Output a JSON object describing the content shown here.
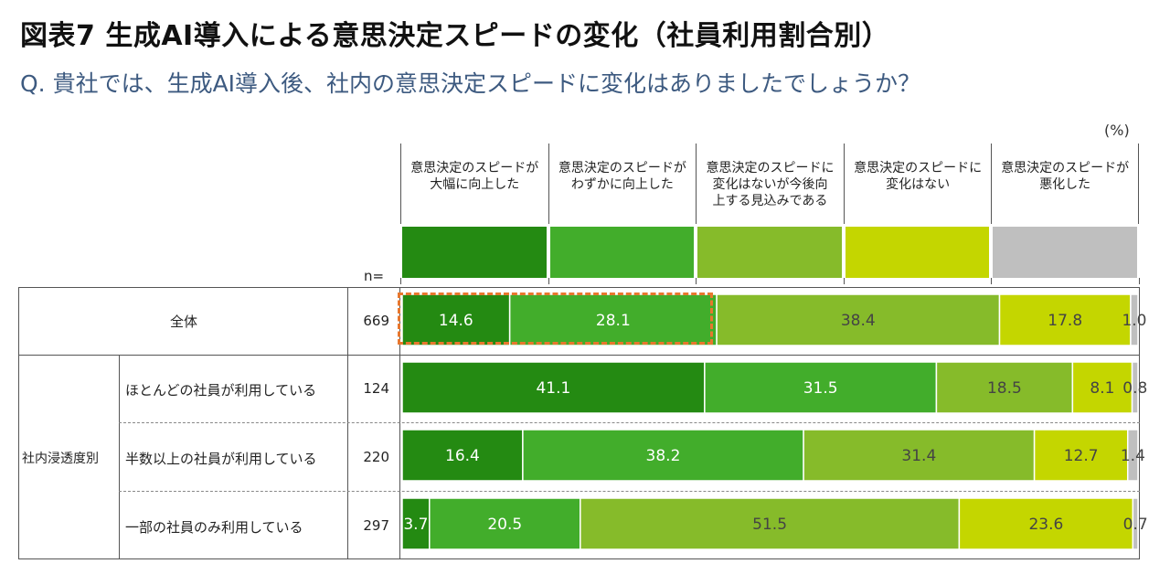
{
  "header": {
    "title": "図表7 生成AI導入による意思決定スピードの変化（社員利用割合別）",
    "question": "Q. 貴社では、生成AI導入後、社内の意思決定スピードに変化はありましたでしょうか？",
    "unit": "(%)",
    "n_label": "n="
  },
  "chart_data": {
    "type": "stacked-bar-horizontal",
    "title": "図表7 生成AI導入による意思決定スピードの変化（社員利用割合別）",
    "group_label": "社内浸透度別",
    "series": [
      {
        "name": "意思決定のスピードが大幅に向上した",
        "lines": [
          "意思決定のスピードが",
          "大幅に向上した"
        ],
        "color": "#248a12",
        "text_color": "#ffffff"
      },
      {
        "name": "意思決定のスピードがわずかに向上した",
        "lines": [
          "意思決定のスピードが",
          "わずかに向上した"
        ],
        "color": "#42ad2b",
        "text_color": "#ffffff"
      },
      {
        "name": "意思決定のスピードに変化はないが今後向上する見込みである",
        "lines": [
          "意思決定のスピードに",
          "変化はないが今後向",
          "上する見込みである"
        ],
        "color": "#86bb2a",
        "text_color": "#444444"
      },
      {
        "name": "意思決定のスピードに変化はない",
        "lines": [
          "意思決定のスピードに",
          "変化はない"
        ],
        "color": "#c4d600",
        "text_color": "#444444"
      },
      {
        "name": "意思決定のスピードが悪化した",
        "lines": [
          "意思決定のスピードが",
          "悪化した"
        ],
        "color": "#bfbfbf",
        "text_color": "#444444"
      }
    ],
    "rows": [
      {
        "label": "全体",
        "n": "669",
        "values": [
          14.6,
          28.1,
          38.4,
          17.8,
          1.0
        ],
        "labels": [
          "14.6",
          "28.1",
          "38.4",
          "17.8",
          "1.0"
        ]
      },
      {
        "label": "ほとんどの社員が利用している",
        "n": "124",
        "values": [
          41.1,
          31.5,
          18.5,
          8.1,
          0.8
        ],
        "labels": [
          "41.1",
          "31.5",
          "18.5",
          "8.1",
          "0.8"
        ]
      },
      {
        "label": "半数以上の社員が利用している",
        "n": "220",
        "values": [
          16.4,
          38.2,
          31.4,
          12.7,
          1.4
        ],
        "labels": [
          "16.4",
          "38.2",
          "31.4",
          "12.7",
          "1.4"
        ]
      },
      {
        "label": "一部の社員のみ利用している",
        "n": "297",
        "values": [
          3.7,
          20.5,
          51.5,
          23.6,
          0.7
        ],
        "labels": [
          "3.7",
          "20.5",
          "51.5",
          "23.6",
          "0.7"
        ]
      }
    ],
    "xlim": [
      0,
      100
    ],
    "highlight": "全体: 大幅に向上した + わずかに向上した"
  }
}
